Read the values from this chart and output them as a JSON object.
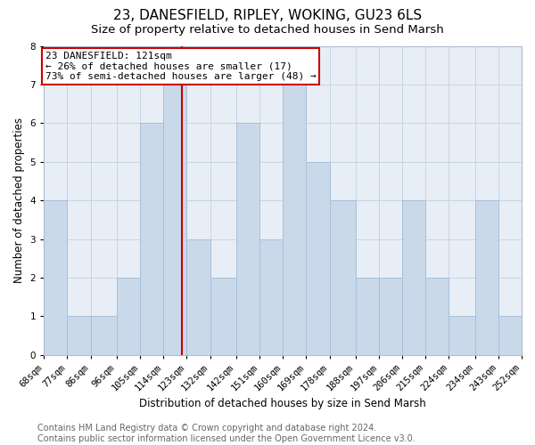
{
  "title": "23, DANESFIELD, RIPLEY, WOKING, GU23 6LS",
  "subtitle": "Size of property relative to detached houses in Send Marsh",
  "xlabel": "Distribution of detached houses by size in Send Marsh",
  "ylabel": "Number of detached properties",
  "bin_labels": [
    "68sqm",
    "77sqm",
    "86sqm",
    "96sqm",
    "105sqm",
    "114sqm",
    "123sqm",
    "132sqm",
    "142sqm",
    "151sqm",
    "160sqm",
    "169sqm",
    "178sqm",
    "188sqm",
    "197sqm",
    "206sqm",
    "215sqm",
    "224sqm",
    "234sqm",
    "243sqm",
    "252sqm"
  ],
  "bin_edges": [
    68,
    77,
    86,
    96,
    105,
    114,
    123,
    132,
    142,
    151,
    160,
    169,
    178,
    188,
    197,
    206,
    215,
    224,
    234,
    243,
    252
  ],
  "heights": [
    4,
    1,
    1,
    2,
    6,
    7,
    3,
    2,
    6,
    3,
    7,
    5,
    4,
    2,
    2,
    4,
    2,
    1,
    4,
    1
  ],
  "property_size": 121,
  "bar_color": "#c9d9ea",
  "bar_edge_color": "#a8c0d8",
  "highlight_line_color": "#cc0000",
  "annotation_text": "23 DANESFIELD: 121sqm\n← 26% of detached houses are smaller (17)\n73% of semi-detached houses are larger (48) →",
  "annotation_box_color": "white",
  "annotation_box_edge_color": "#cc0000",
  "footer_text": "Contains HM Land Registry data © Crown copyright and database right 2024.\nContains public sector information licensed under the Open Government Licence v3.0.",
  "ylim": [
    0,
    8
  ],
  "yticks": [
    0,
    1,
    2,
    3,
    4,
    5,
    6,
    7,
    8
  ],
  "grid_color": "#c8d4e4",
  "background_color": "#e8eef6",
  "title_fontsize": 11,
  "subtitle_fontsize": 9.5,
  "axis_label_fontsize": 8.5,
  "tick_fontsize": 7.5,
  "footer_fontsize": 7,
  "annotation_fontsize": 8
}
